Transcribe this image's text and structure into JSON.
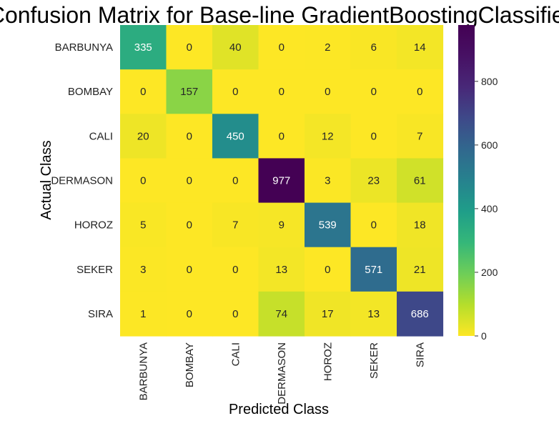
{
  "chart_data": {
    "type": "heatmap",
    "title": "Confusion Matrix for Base-line GradientBoostingClassifier",
    "xlabel": "Predicted Class",
    "ylabel": "Actual Class",
    "x_categories": [
      "BARBUNYA",
      "BOMBAY",
      "CALI",
      "DERMASON",
      "HOROZ",
      "SEKER",
      "SIRA"
    ],
    "y_categories": [
      "BARBUNYA",
      "BOMBAY",
      "CALI",
      "DERMASON",
      "HOROZ",
      "SEKER",
      "SIRA"
    ],
    "values": [
      [
        335,
        0,
        40,
        0,
        2,
        6,
        14
      ],
      [
        0,
        157,
        0,
        0,
        0,
        0,
        0
      ],
      [
        20,
        0,
        450,
        0,
        12,
        0,
        7
      ],
      [
        0,
        0,
        0,
        977,
        3,
        23,
        61
      ],
      [
        5,
        0,
        7,
        9,
        539,
        0,
        18
      ],
      [
        3,
        0,
        0,
        13,
        0,
        571,
        21
      ],
      [
        1,
        0,
        0,
        74,
        17,
        13,
        686
      ]
    ],
    "colormap": "viridis_r",
    "color_range": [
      0,
      977
    ],
    "colorbar_ticks": [
      0,
      200,
      400,
      600,
      800
    ],
    "annotations": true
  }
}
